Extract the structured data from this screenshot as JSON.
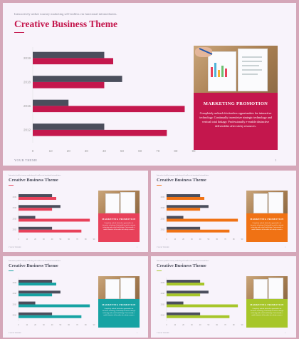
{
  "main_slide": {
    "subtitle": "Interactively utilize tourney marketing sell-endless via functional infomediaries.",
    "title": "Creative Business Theme",
    "footer": "YOUR THEME",
    "page_number": "1",
    "promo_title": "MARKETING PROMOTION",
    "promo_body": "Completely unleash frictionless opportunities for interactive technology. Continually incentivize strategic technology and vertical total linkage. Professionally e-enable distinctive deliverables after sticky resources.",
    "accent_color": "#c4174d"
  },
  "chart_data": {
    "type": "bar",
    "orientation": "horizontal",
    "categories": [
      "2019",
      "2018",
      "2015",
      "2012"
    ],
    "series": [
      {
        "values": [
          40,
          50,
          20,
          40
        ],
        "color": "#4b4e5c"
      },
      {
        "values": [
          45,
          40,
          85,
          75
        ],
        "color": "#c4174d"
      }
    ],
    "x_ticks": [
      "0",
      "10",
      "20",
      "30",
      "40",
      "50",
      "60",
      "70",
      "80",
      "90"
    ],
    "xlim": [
      0,
      90
    ],
    "grid": false,
    "legend": "none"
  },
  "variants": [
    {
      "accent_color": "#e8415a",
      "title": "Creative Business Theme",
      "promo_title": "MARKETING PROMOTION"
    },
    {
      "accent_color": "#f07214",
      "title": "Creative Business Theme",
      "promo_title": "MARKETING PROMOTION"
    },
    {
      "accent_color": "#17a3a3",
      "title": "Creative Business Theme",
      "promo_title": "MARKETING PROMOTION"
    },
    {
      "accent_color": "#a7c62a",
      "title": "Creative Business Theme",
      "promo_title": "MARKETING PROMOTION"
    }
  ]
}
